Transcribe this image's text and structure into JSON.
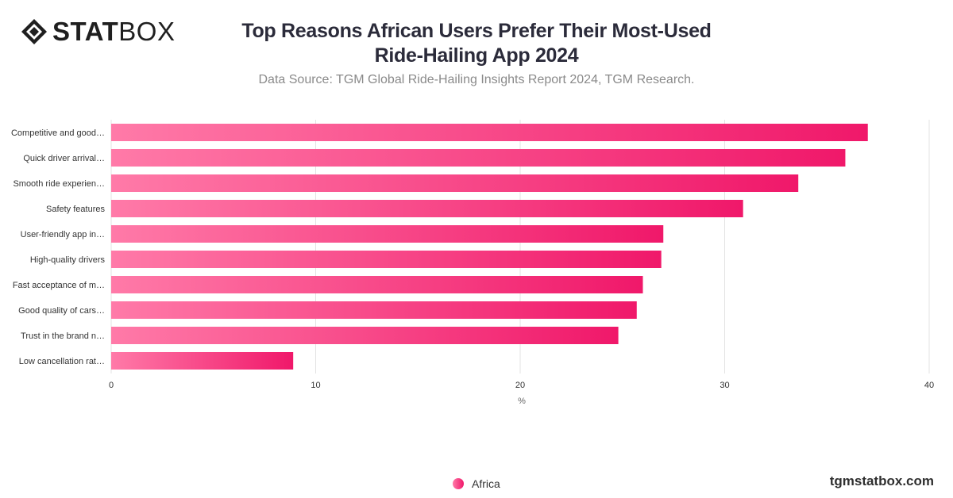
{
  "brand": {
    "logo_bold": "STAT",
    "logo_thin": "BOX",
    "logo_icon": "diamond-logo-icon",
    "footer_url": "tgmstatbox.com"
  },
  "header": {
    "title": "Top Reasons African Users Prefer Their Most-Used Ride-Hailing App 2024",
    "subtitle": "Data Source: TGM Global Ride-Hailing Insights Report 2024, TGM Research."
  },
  "colors": {
    "bar_start": "#ff7aa8",
    "bar_end": "#f0186a",
    "grid": "#e3e3e3",
    "axis_text": "#333333"
  },
  "chart_data": {
    "type": "bar",
    "orientation": "horizontal",
    "categories": [
      "Competitive and good…",
      "Quick driver arrival…",
      "Smooth ride experien…",
      "Safety features",
      "User-friendly app in…",
      "High-quality drivers",
      "Fast acceptance of m…",
      "Good quality of cars…",
      "Trust in the brand n…",
      "Low cancellation rat…"
    ],
    "series": [
      {
        "name": "Africa",
        "values": [
          37,
          35.9,
          33.6,
          30.9,
          27,
          26.9,
          26,
          25.7,
          24.8,
          8.9
        ]
      }
    ],
    "xlabel": "%",
    "ylabel": "",
    "xlim": [
      0,
      40
    ],
    "xticks": [
      0,
      10,
      20,
      30,
      40
    ],
    "grid": true,
    "legend": "bottom-center"
  }
}
